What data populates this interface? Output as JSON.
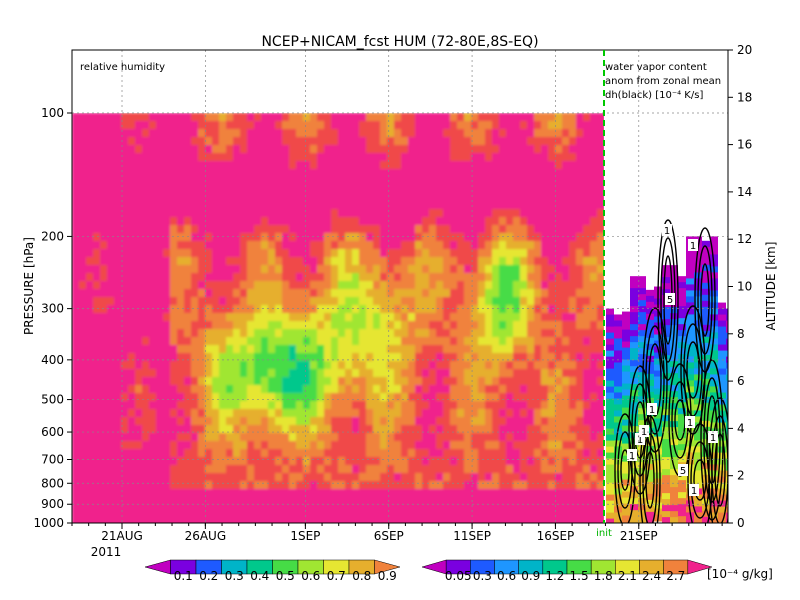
{
  "chart_data": {
    "type": "heatmap",
    "title": "NCEP+NICAM_fcst HUM (72-80E,8S-EQ)",
    "left_panel_label": "relative humidity",
    "right_panel_label_lines": [
      "water vapor content",
      "anom from zonal mean",
      "dh(black) [10⁻⁴ K/s]"
    ],
    "ylabel_left": "PRESSURE [hPa]",
    "ylabel_right": "ALTITUDE [km]",
    "pressure_ticks": [
      "100",
      "200",
      "300",
      "400",
      "500",
      "600",
      "700",
      "800",
      "900",
      "1000"
    ],
    "altitude_ticks": [
      "0",
      "2",
      "4",
      "6",
      "8",
      "10",
      "12",
      "14",
      "16",
      "18",
      "20"
    ],
    "time_ticks": [
      "21AUG",
      "26AUG",
      "1SEP",
      "6SEP",
      "11SEP",
      "16SEP",
      "21SEP"
    ],
    "year_label": "2011",
    "init_label": "init",
    "rh_colorbar": {
      "labels": [
        "0.1",
        "0.2",
        "0.3",
        "0.4",
        "0.5",
        "0.6",
        "0.7",
        "0.8",
        "0.9"
      ],
      "colors": [
        "#c000c0",
        "#7a00e0",
        "#1e5aff",
        "#00b4c8",
        "#00c88c",
        "#46dc46",
        "#a0e632",
        "#e6e632",
        "#e6af2d",
        "#f0823c",
        "#f04a4a",
        "#f0238c"
      ]
    },
    "wv_colorbar": {
      "labels": [
        "0.05",
        "0.3",
        "0.6",
        "0.9",
        "1.2",
        "1.5",
        "1.8",
        "2.1",
        "2.4",
        "2.7"
      ],
      "units": "[10⁻⁴ g/kg]",
      "colors": [
        "#c000c0",
        "#7a00e0",
        "#1e5aff",
        "#1e96ff",
        "#00b4c8",
        "#00c88c",
        "#46dc46",
        "#a0e632",
        "#e6e632",
        "#e6af2d",
        "#f0823c",
        "#f0238c"
      ]
    },
    "contour_labels": [
      "1",
      "1",
      "1",
      "5",
      "1",
      "1",
      "5",
      "1",
      "1",
      "1",
      "1"
    ],
    "x_start_day_in_aug": 18,
    "x_end_day_offset": 38,
    "init_day_offset": 30
  }
}
